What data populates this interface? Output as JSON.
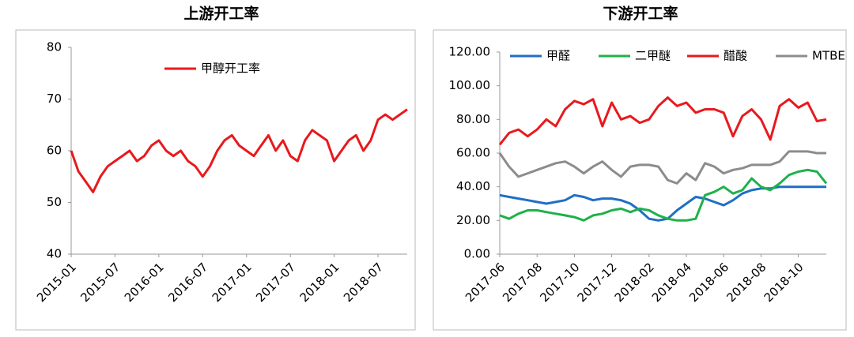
{
  "chart_data": [
    {
      "type": "line",
      "title": "上游开工率",
      "categories": [
        "2015-01",
        null,
        null,
        null,
        null,
        null,
        "2015-07",
        null,
        null,
        null,
        null,
        null,
        "2016-01",
        null,
        null,
        null,
        null,
        null,
        "2016-07",
        null,
        null,
        null,
        null,
        null,
        "2017-01",
        null,
        null,
        null,
        null,
        null,
        "2017-07",
        null,
        null,
        null,
        null,
        null,
        "2018-01",
        null,
        null,
        null,
        null,
        null,
        "2018-07",
        null,
        null,
        null,
        null
      ],
      "series": [
        {
          "name": "甲醇开工率",
          "color": "#e8191e",
          "values": [
            60,
            56,
            54,
            52,
            55,
            57,
            58,
            59,
            60,
            58,
            59,
            61,
            62,
            60,
            59,
            60,
            58,
            57,
            55,
            57,
            60,
            62,
            63,
            61,
            60,
            59,
            61,
            63,
            60,
            62,
            59,
            58,
            62,
            64,
            63,
            62,
            58,
            60,
            62,
            63,
            60,
            62,
            66,
            67,
            66,
            67,
            68
          ]
        }
      ],
      "ylim": [
        40,
        80
      ],
      "yticks": [
        40,
        50,
        60,
        70,
        80
      ]
    },
    {
      "type": "line",
      "title": "下游开工率",
      "categories": [
        "2017-06",
        null,
        null,
        null,
        "2017-08",
        null,
        null,
        null,
        "2017-10",
        null,
        null,
        null,
        "2017-12",
        null,
        null,
        null,
        "2018-02",
        null,
        null,
        null,
        "2018-04",
        null,
        null,
        null,
        "2018-06",
        null,
        null,
        null,
        "2018-08",
        null,
        null,
        null,
        "2018-10",
        null,
        null,
        null
      ],
      "series": [
        {
          "name": "甲醛",
          "color": "#1f6fc5",
          "values": [
            35,
            34,
            33,
            32,
            31,
            30,
            31,
            32,
            35,
            34,
            32,
            33,
            33,
            32,
            30,
            26,
            21,
            20,
            21,
            26,
            30,
            34,
            33,
            31,
            29,
            32,
            36,
            38,
            39,
            39,
            40,
            40,
            40,
            40,
            40,
            40
          ]
        },
        {
          "name": "二甲醚",
          "color": "#1fb14b",
          "values": [
            23,
            21,
            24,
            26,
            26,
            25,
            24,
            23,
            22,
            20,
            23,
            24,
            26,
            27,
            25,
            27,
            26,
            23,
            21,
            20,
            20,
            21,
            35,
            37,
            40,
            36,
            38,
            45,
            40,
            38,
            42,
            47,
            49,
            50,
            49,
            42
          ]
        },
        {
          "name": "醋酸",
          "color": "#e8191e",
          "values": [
            65,
            72,
            74,
            70,
            74,
            80,
            76,
            86,
            91,
            89,
            92,
            76,
            90,
            80,
            82,
            78,
            80,
            88,
            93,
            88,
            90,
            84,
            86,
            86,
            84,
            70,
            82,
            86,
            80,
            68,
            88,
            92,
            87,
            90,
            79,
            80
          ]
        },
        {
          "name": "MTBE",
          "color": "#8c8c8c",
          "values": [
            60,
            52,
            46,
            48,
            50,
            52,
            54,
            55,
            52,
            48,
            52,
            55,
            50,
            46,
            52,
            53,
            53,
            52,
            44,
            42,
            48,
            44,
            54,
            52,
            48,
            50,
            51,
            53,
            53,
            53,
            55,
            61,
            61,
            61,
            60,
            60
          ]
        }
      ],
      "ylim": [
        0,
        120
      ],
      "yticks": [
        {
          "value": 0,
          "label": "0.00"
        },
        {
          "value": 20,
          "label": "20.00"
        },
        {
          "value": 40,
          "label": "40.00"
        },
        {
          "value": 60,
          "label": "60.00"
        },
        {
          "value": 80,
          "label": "80.00"
        },
        {
          "value": 100,
          "label": "100.00"
        },
        {
          "value": 120,
          "label": "120.00"
        }
      ]
    }
  ]
}
